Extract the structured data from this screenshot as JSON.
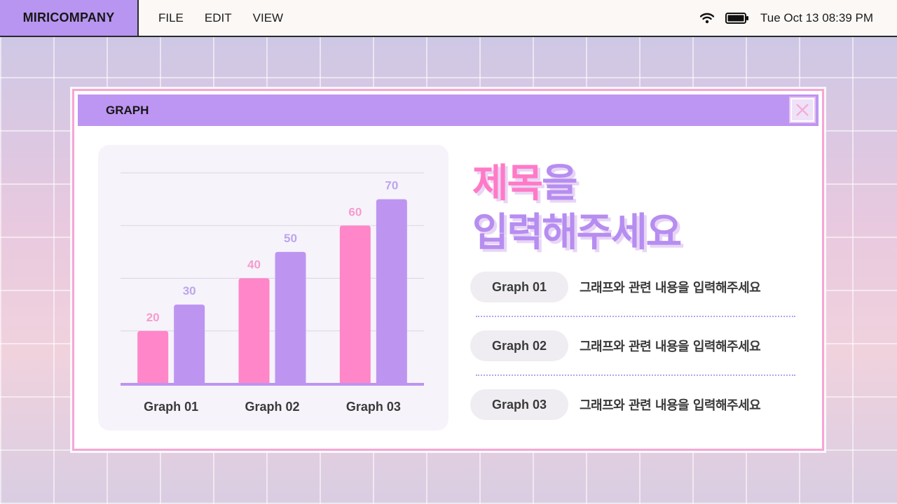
{
  "menubar": {
    "brand": "MIRICOMPANY",
    "menu": [
      "FILE",
      "EDIT",
      "VIEW"
    ],
    "clock": "Tue Oct 13 08:39 PM",
    "icons": [
      "wifi-icon",
      "battery-icon"
    ]
  },
  "window": {
    "title": "GRAPH",
    "close_icon": "close-icon"
  },
  "headline": {
    "line1_pink": "제목",
    "line1_purple": "을",
    "line2": "입력해주세요"
  },
  "legend": [
    {
      "label": "Graph 01",
      "desc": "그래프와 관련 내용을 입력해주세요"
    },
    {
      "label": "Graph 02",
      "desc": "그래프와 관련 내용을 입력해주세요"
    },
    {
      "label": "Graph 03",
      "desc": "그래프와 관련 내용을 입력해주세요"
    }
  ],
  "colors": {
    "pink": "#ff86c8",
    "purple": "#bd95f0",
    "pink_label": "#f69ccd",
    "purple_label": "#bca6ec"
  },
  "chart_data": {
    "type": "bar",
    "categories": [
      "Graph 01",
      "Graph 02",
      "Graph 03"
    ],
    "series": [
      {
        "values": [
          20,
          40,
          60
        ]
      },
      {
        "values": [
          30,
          50,
          70
        ]
      }
    ],
    "ylim": [
      0,
      80
    ],
    "grid": true,
    "data_labels": true
  }
}
